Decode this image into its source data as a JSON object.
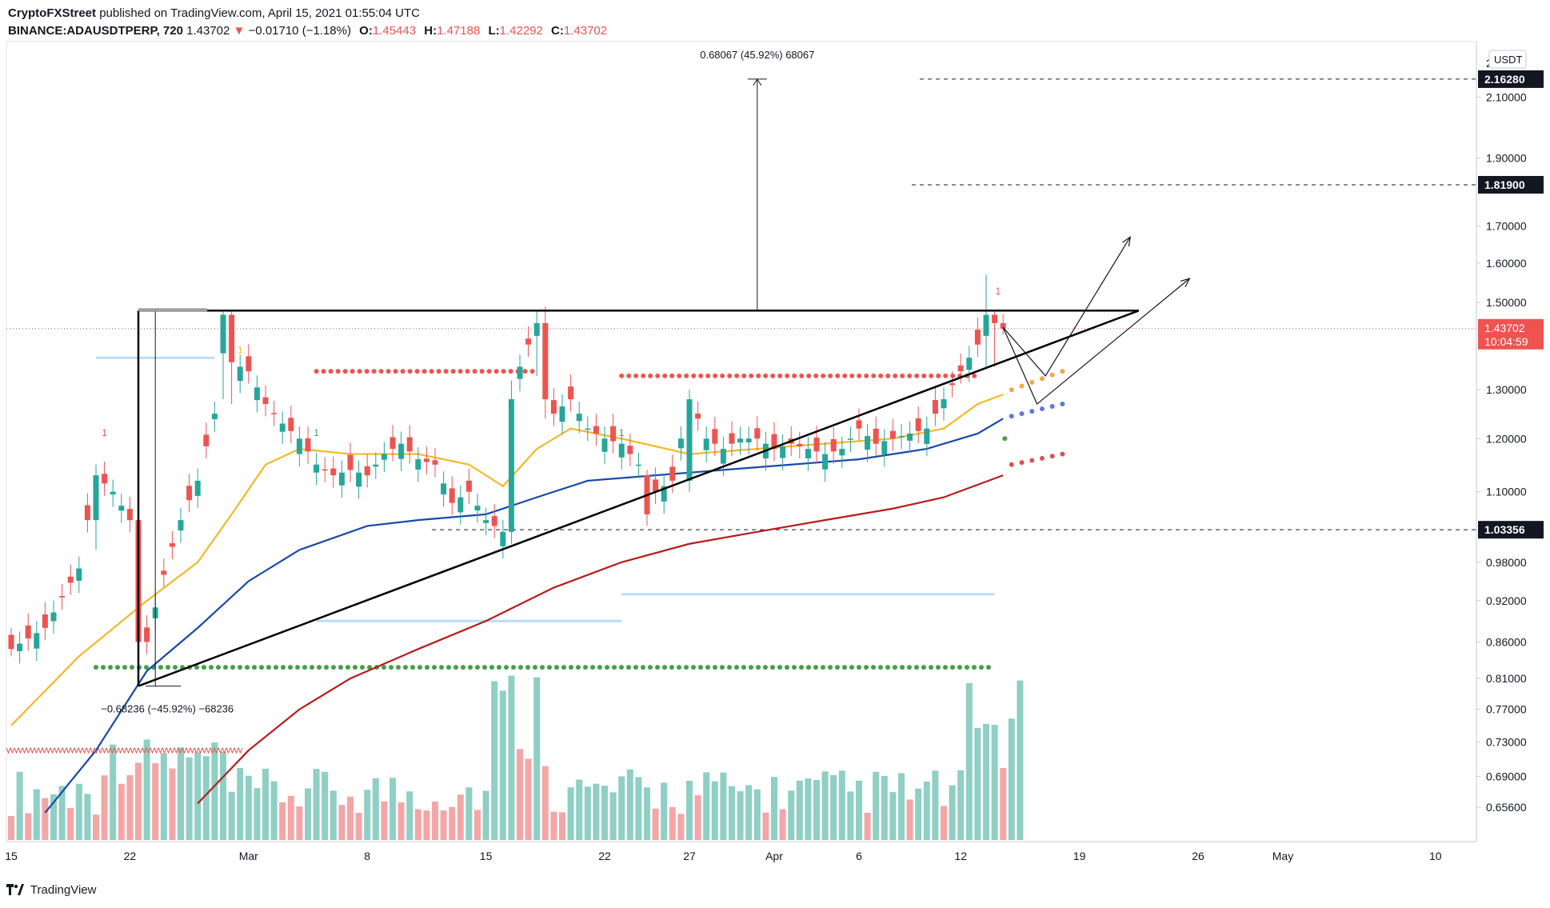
{
  "header": {
    "publisher": "CryptoFXStreet",
    "published_text": "published on TradingView.com, April 15, 2021 01:55:04 UTC",
    "symbol": "BINANCE:ADAUSDTPERP, 720",
    "last": "1.43702",
    "change_arrow": "▼",
    "change": "−0.01710 (−1.18%)",
    "open_key": "O:",
    "open": "1.45443",
    "high_key": "H:",
    "high": "1.47188",
    "low_key": "L:",
    "low": "1.42292",
    "close_key": "C:",
    "close": "1.43702"
  },
  "footer": {
    "brand": "TradingView"
  },
  "chart_data": {
    "type": "candlestick",
    "instrument": "BINANCE:ADAUSDTPERP",
    "interval": "720",
    "currency": "USDT",
    "y_scale": "log",
    "ylim": [
      0.62,
      2.3
    ],
    "y_ticks": [
      0.656,
      0.69,
      0.73,
      0.77,
      0.81,
      0.86,
      0.92,
      0.98,
      1.1,
      1.2,
      1.3,
      1.5,
      1.6,
      1.7,
      1.9,
      2.1
    ],
    "y_tick_labels": [
      "0.65600",
      "0.69000",
      "0.73000",
      "0.77000",
      "0.81000",
      "0.86000",
      "0.92000",
      "0.98000",
      "1.10000",
      "1.20000",
      "1.30000",
      "1.50000",
      "1.60000",
      "1.70000",
      "1.90000",
      "2.10000"
    ],
    "y_top_tick_label": "2",
    "x_tick_labels": [
      {
        "label": "15",
        "day": 0
      },
      {
        "label": "22",
        "day": 7
      },
      {
        "label": "Mar",
        "day": 14
      },
      {
        "label": "8",
        "day": 21
      },
      {
        "label": "15",
        "day": 28
      },
      {
        "label": "22",
        "day": 35
      },
      {
        "label": "27",
        "day": 40
      },
      {
        "label": "Apr",
        "day": 45
      },
      {
        "label": "6",
        "day": 50
      },
      {
        "label": "12",
        "day": 56
      },
      {
        "label": "19",
        "day": 63
      },
      {
        "label": "26",
        "day": 70
      },
      {
        "label": "May",
        "day": 75
      },
      {
        "label": "10",
        "day": 84
      }
    ],
    "x_start": "Feb 15, 2021",
    "price_levels": [
      {
        "value": 2.1628,
        "label": "2.16280"
      },
      {
        "value": 1.819,
        "label": "1.81900"
      },
      {
        "value": 1.03356,
        "label": "1.03356"
      }
    ],
    "last_price": {
      "value": 1.43702,
      "label": "1.43702",
      "countdown": "10:04:59",
      "color": "#ef5350"
    },
    "measurements": [
      {
        "text": "0.68067 (45.92%) 68067",
        "from": 1.48,
        "to": 2.1628
      },
      {
        "text": "−0.68236 (−45.92%) −68236",
        "from": 1.48,
        "to": 0.8
      }
    ],
    "pattern": {
      "name": "ascending triangle",
      "resistance": 1.48,
      "support_from": 0.8,
      "support_to": 1.48
    },
    "key_candles": [
      {
        "day": 0,
        "o": 0.87,
        "h": 0.88,
        "l": 0.84,
        "c": 0.85
      },
      {
        "day": 5,
        "o": 1.05,
        "h": 1.15,
        "l": 1.0,
        "c": 1.13
      },
      {
        "day": 7.5,
        "o": 1.05,
        "h": 1.11,
        "l": 0.82,
        "c": 0.86
      },
      {
        "day": 12.5,
        "o": 1.38,
        "h": 1.48,
        "l": 1.28,
        "c": 1.47
      },
      {
        "day": 13,
        "o": 1.47,
        "h": 1.48,
        "l": 1.27,
        "c": 1.36
      },
      {
        "day": 29.5,
        "o": 1.03,
        "h": 1.32,
        "l": 1.01,
        "c": 1.28
      },
      {
        "day": 31,
        "o": 1.42,
        "h": 1.48,
        "l": 1.33,
        "c": 1.45
      },
      {
        "day": 31.5,
        "o": 1.45,
        "h": 1.49,
        "l": 1.24,
        "c": 1.28
      },
      {
        "day": 37.5,
        "o": 1.13,
        "h": 1.14,
        "l": 1.04,
        "c": 1.06
      },
      {
        "day": 40,
        "o": 1.12,
        "h": 1.3,
        "l": 1.1,
        "c": 1.28
      },
      {
        "day": 57.5,
        "o": 1.42,
        "h": 1.57,
        "l": 1.35,
        "c": 1.47
      },
      {
        "day": 58,
        "o": 1.47,
        "h": 1.48,
        "l": 1.35,
        "c": 1.45
      },
      {
        "day": 58.5,
        "o": 1.45,
        "h": 1.47188,
        "l": 1.42292,
        "c": 1.43702
      }
    ],
    "moving_averages": [
      {
        "color": "#f5b82a",
        "points": [
          [
            0,
            0.75
          ],
          [
            4,
            0.84
          ],
          [
            8,
            0.92
          ],
          [
            11,
            0.98
          ],
          [
            13,
            1.06
          ],
          [
            15,
            1.15
          ],
          [
            17,
            1.18
          ],
          [
            20,
            1.17
          ],
          [
            24,
            1.17
          ],
          [
            27,
            1.15
          ],
          [
            29,
            1.11
          ],
          [
            31,
            1.18
          ],
          [
            33,
            1.22
          ],
          [
            36,
            1.2
          ],
          [
            40,
            1.17
          ],
          [
            44,
            1.18
          ],
          [
            48,
            1.19
          ],
          [
            52,
            1.2
          ],
          [
            55,
            1.22
          ],
          [
            57,
            1.27
          ],
          [
            58.5,
            1.29
          ]
        ]
      },
      {
        "color": "#1849a9",
        "points": [
          [
            2,
            0.65
          ],
          [
            5,
            0.72
          ],
          [
            8,
            0.82
          ],
          [
            11,
            0.88
          ],
          [
            14,
            0.95
          ],
          [
            17,
            1.0
          ],
          [
            21,
            1.04
          ],
          [
            24,
            1.05
          ],
          [
            28,
            1.06
          ],
          [
            31,
            1.09
          ],
          [
            34,
            1.12
          ],
          [
            38,
            1.13
          ],
          [
            42,
            1.14
          ],
          [
            46,
            1.15
          ],
          [
            50,
            1.16
          ],
          [
            54,
            1.18
          ],
          [
            57,
            1.21
          ],
          [
            58.5,
            1.24
          ]
        ]
      },
      {
        "color": "#b71c1c",
        "points": [
          [
            11,
            0.66
          ],
          [
            14,
            0.72
          ],
          [
            17,
            0.77
          ],
          [
            20,
            0.81
          ],
          [
            24,
            0.85
          ],
          [
            28,
            0.89
          ],
          [
            32,
            0.94
          ],
          [
            36,
            0.98
          ],
          [
            40,
            1.01
          ],
          [
            44,
            1.03
          ],
          [
            48,
            1.05
          ],
          [
            52,
            1.07
          ],
          [
            55,
            1.09
          ],
          [
            58.5,
            1.13
          ]
        ]
      }
    ],
    "dotted_levels": [
      {
        "value": 1.34,
        "from_day": 18,
        "to_day": 31,
        "color": "#ef5350"
      },
      {
        "value": 1.33,
        "from_day": 36,
        "to_day": 57,
        "color": "#ef5350"
      },
      {
        "value": 0.825,
        "from_day": 5,
        "to_day": 58,
        "color": "#43a047"
      }
    ],
    "horizontal_lines": [
      {
        "value": 1.37,
        "from_day": 5,
        "to_day": 12,
        "color": "#bcdcf4"
      },
      {
        "value": 0.89,
        "from_day": 18,
        "to_day": 36,
        "color": "#bcdcf4"
      },
      {
        "value": 0.93,
        "from_day": 36,
        "to_day": 58,
        "color": "#bcdcf4"
      }
    ],
    "projection_paths": [
      [
        [
          58.5,
          1.44
        ],
        [
          61,
          1.33
        ],
        [
          66,
          1.67
        ]
      ],
      [
        [
          58.5,
          1.44
        ],
        [
          60.5,
          1.27
        ],
        [
          69.5,
          1.56
        ]
      ]
    ],
    "markers": [
      {
        "text": "1",
        "day": 5.5,
        "value": 1.205,
        "color": "#ef5350"
      },
      {
        "text": "1",
        "day": 13.5,
        "value": 1.38,
        "color": "#f5b82a"
      },
      {
        "text": "1",
        "day": 18,
        "value": 1.205,
        "color": "#43a047"
      },
      {
        "text": "1",
        "day": 36,
        "value": 1.205,
        "color": "#43a047"
      },
      {
        "text": "1",
        "day": 58.2,
        "value": 1.52,
        "color": "#ef5350"
      }
    ],
    "volume": {
      "ma_color": "#f5b82a",
      "up_color": "#8fcfc4",
      "down_color": "#f4a6a6"
    }
  }
}
